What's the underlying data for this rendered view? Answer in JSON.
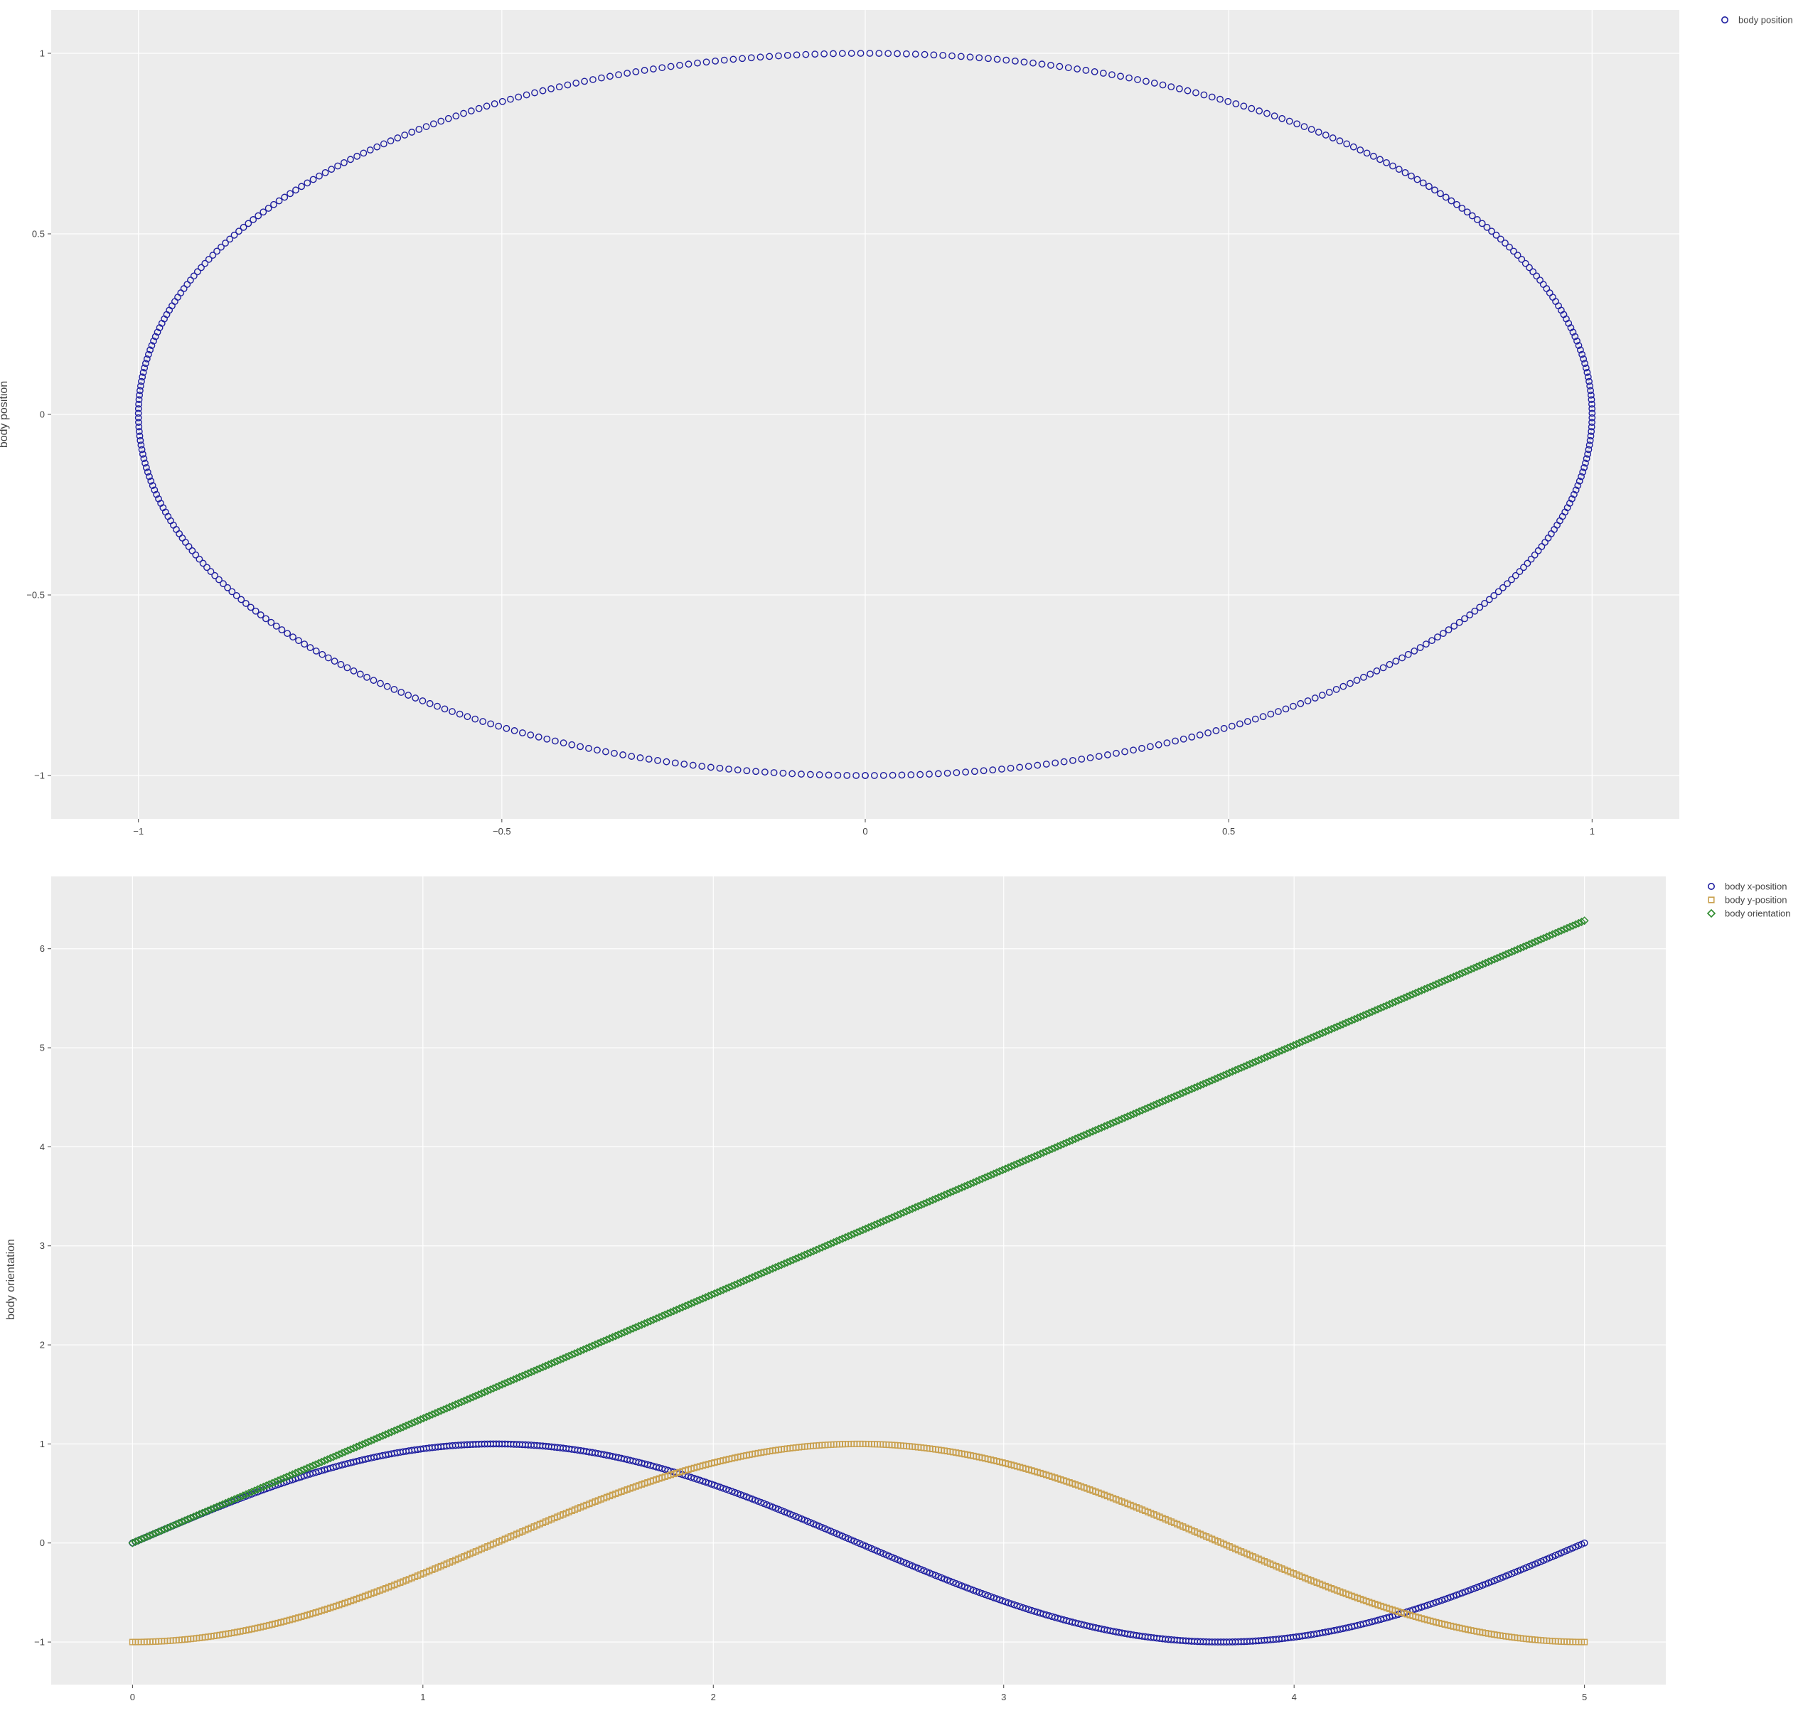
{
  "chart_data": [
    {
      "type": "scatter",
      "ylabel": "body position",
      "xlim": [
        -1.12,
        1.12
      ],
      "ylim": [
        -1.12,
        1.12
      ],
      "xticks": [
        -1,
        -0.5,
        0,
        0.5,
        1
      ],
      "xtick_labels": [
        "−1",
        "−0.5",
        "0",
        "0.5",
        "1"
      ],
      "yticks": [
        -1,
        -0.5,
        0,
        0.5,
        1
      ],
      "ytick_labels": [
        "−1",
        "−0.5",
        "0",
        "0.5",
        "1"
      ],
      "grid": true,
      "legend": "top-right",
      "series": [
        {
          "name": "body position",
          "marker": "circle-open",
          "color": "#1f1fa0",
          "generator": "unit-circle",
          "t_range": [
            0,
            5
          ],
          "points": 500
        }
      ]
    },
    {
      "type": "scatter",
      "ylabel": "body orientation",
      "xlim": [
        -0.28,
        5.28
      ],
      "ylim": [
        -1.43,
        6.73
      ],
      "xticks": [
        0,
        1,
        2,
        3,
        4,
        5
      ],
      "xtick_labels": [
        "0",
        "1",
        "2",
        "3",
        "4",
        "5"
      ],
      "yticks": [
        -1,
        0,
        1,
        2,
        3,
        4,
        5,
        6
      ],
      "ytick_labels": [
        "−1",
        "0",
        "1",
        "2",
        "3",
        "4",
        "5",
        "6"
      ],
      "grid": true,
      "legend": "top-right",
      "series": [
        {
          "name": "body x-position",
          "marker": "circle-open",
          "color": "#1f1fa0",
          "formula": "sin(2*pi*t/5)",
          "t_range": [
            0,
            5
          ],
          "points": 500
        },
        {
          "name": "body y-position",
          "marker": "square-open",
          "color": "#c9a04e",
          "formula": "-cos(2*pi*t/5)",
          "t_range": [
            0,
            5
          ],
          "points": 500
        },
        {
          "name": "body orientation",
          "marker": "diamond-open",
          "color": "#2e8b2e",
          "formula": "2*pi*t/5",
          "t_range": [
            0,
            5
          ],
          "points": 500
        }
      ]
    }
  ]
}
